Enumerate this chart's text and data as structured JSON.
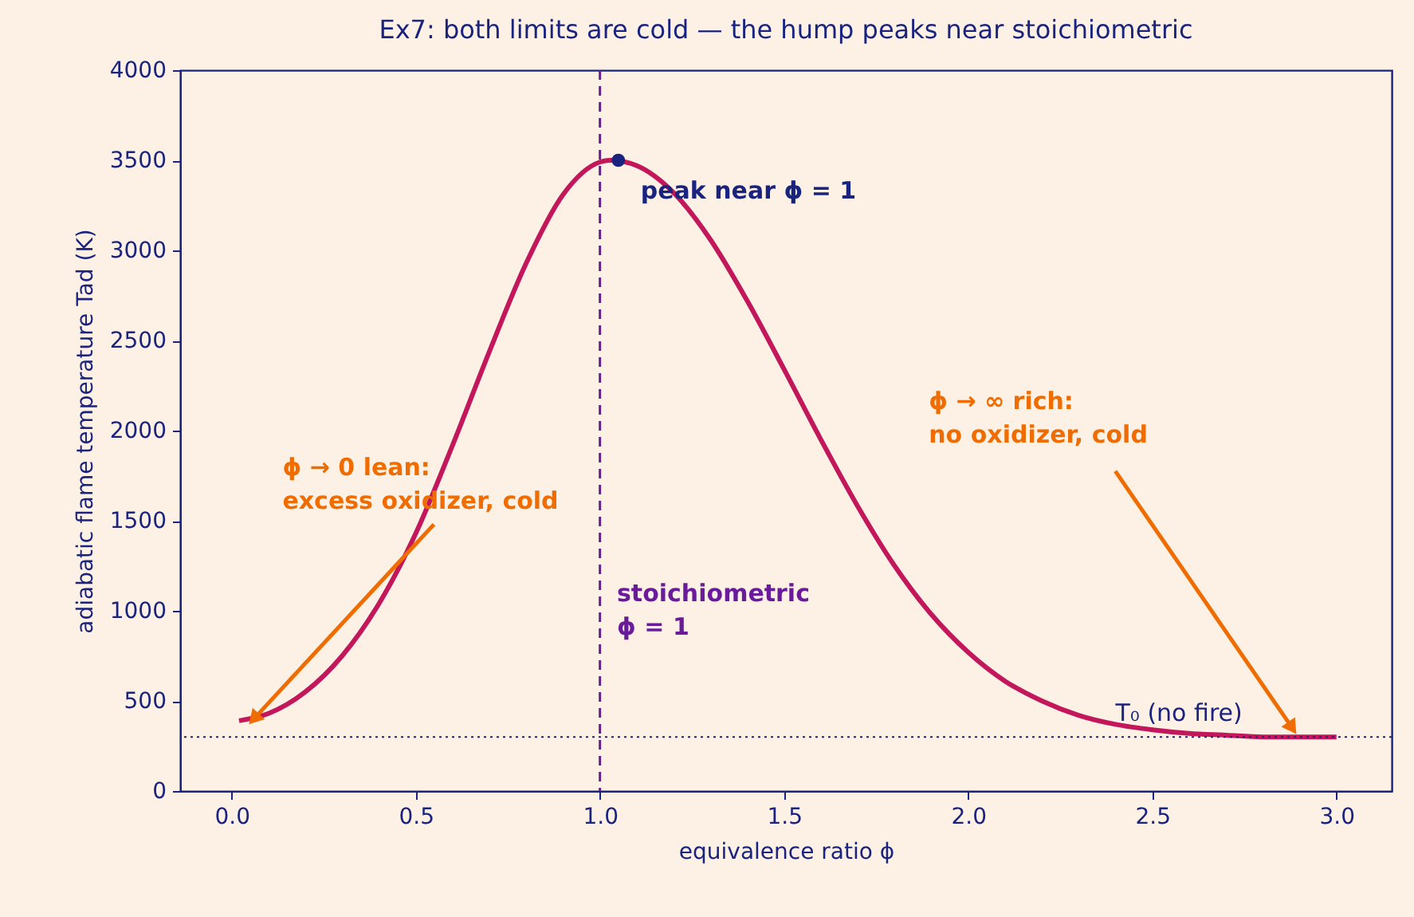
{
  "chart_data": {
    "type": "line",
    "title": "Ex7: both limits are cold — the hump peaks near stoichiometric",
    "xlabel": "equivalence ratio  ϕ",
    "ylabel": "adiabatic flame temperature  Tad  (K)",
    "series": [
      {
        "color": "#c2185b",
        "x": [
          0.02,
          0.1,
          0.2,
          0.3,
          0.4,
          0.5,
          0.6,
          0.7,
          0.8,
          0.9,
          1.0,
          1.03,
          1.1,
          1.2,
          1.3,
          1.4,
          1.5,
          1.6,
          1.7,
          1.8,
          1.9,
          2.0,
          2.1,
          2.2,
          2.3,
          2.4,
          2.5,
          2.6,
          2.7,
          2.8,
          3.0
        ],
        "values": [
          390,
          430,
          550,
          750,
          1040,
          1430,
          1920,
          2440,
          2930,
          3310,
          3490,
          3500,
          3470,
          3320,
          3060,
          2720,
          2340,
          1950,
          1580,
          1250,
          980,
          770,
          610,
          500,
          420,
          370,
          340,
          320,
          310,
          300,
          300
        ]
      },
      {
        "type": "scatter",
        "color": "#1a237e",
        "x": [
          1.05
        ],
        "values": [
          3500
        ]
      }
    ],
    "ref_lines": [
      {
        "axis": "x",
        "value": 1.0,
        "color": "#6a1b9a",
        "line_style": "dashed"
      },
      {
        "axis": "y",
        "value": 300,
        "color": "#1a237e",
        "line_style": "dotted"
      }
    ],
    "annotations": [
      {
        "text": "peak near ϕ = 1",
        "x": 1.05,
        "y": 3500
      },
      {
        "text": "ϕ → 0 lean:\nexcess oxidizer, cold",
        "x": 0.06,
        "y": 400
      },
      {
        "text": "ϕ → ∞ rich:\nno oxidizer, cold",
        "x": 2.88,
        "y": 350
      },
      "stoichiometric\nϕ = 1",
      {
        "text": "T₀ (no fire)",
        "x": 2.4,
        "y": 300
      }
    ],
    "xlim": [
      -0.14,
      3.15
    ],
    "ylim": [
      0,
      4000
    ],
    "xticks": [
      {
        "value": 0,
        "label": "0.0"
      },
      0.5,
      {
        "value": 1,
        "label": "1.0"
      },
      1.5,
      {
        "value": 2,
        "label": "2.0"
      },
      2.5,
      {
        "value": 3,
        "label": "3.0"
      }
    ],
    "yticks": [
      0,
      500,
      1000,
      1500,
      2000,
      2500,
      3000,
      3500,
      4000
    ],
    "grid": false,
    "legend": false
  }
}
